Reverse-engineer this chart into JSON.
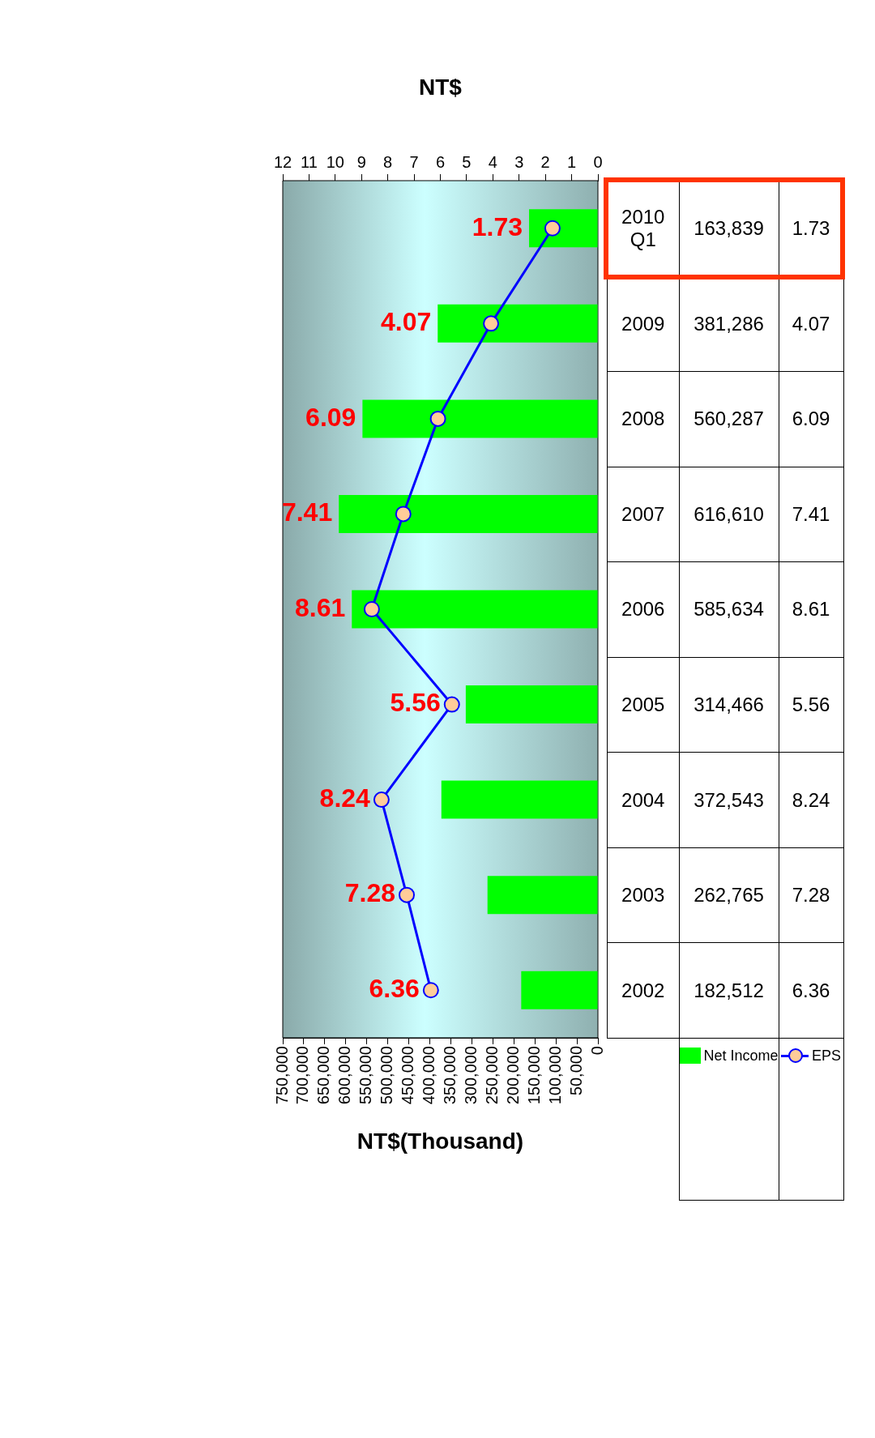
{
  "chart_data": {
    "type": "bar",
    "orientation": "horizontal",
    "xlabel": "NT$(Thousand)",
    "x2label": "NT$",
    "categories": [
      "2010 Q1",
      "2009",
      "2008",
      "2007",
      "2006",
      "2005",
      "2004",
      "2003",
      "2002"
    ],
    "series": [
      {
        "name": "Net Income",
        "color": "#00ff00",
        "values": [
          163839,
          381286,
          560287,
          616610,
          585634,
          314466,
          372543,
          262765,
          182512
        ],
        "value_labels": [
          "163,839",
          "381,286",
          "560,287",
          "616,610",
          "585,634",
          "314,466",
          "372,543",
          "262,765",
          "182,512"
        ]
      },
      {
        "name": "EPS",
        "type": "line",
        "axis": "x2",
        "color": "#0000ff",
        "values": [
          1.73,
          4.07,
          6.09,
          7.41,
          8.61,
          5.56,
          8.24,
          7.28,
          6.36
        ],
        "value_labels": [
          "1.73",
          "4.07",
          "6.09",
          "7.41",
          "8.61",
          "5.56",
          "8.24",
          "7.28",
          "6.36"
        ]
      }
    ],
    "xlim": [
      750000,
      0
    ],
    "xticks": [
      0,
      {
        "value": 50000,
        "label": "50,000"
      },
      {
        "value": 100000,
        "label": "100,000"
      },
      {
        "value": 150000,
        "label": "150,000"
      },
      {
        "value": 200000,
        "label": "200,000"
      },
      {
        "value": 250000,
        "label": "250,000"
      },
      {
        "value": 300000,
        "label": "300,000"
      },
      {
        "value": 350000,
        "label": "350,000"
      },
      {
        "value": 400000,
        "label": "400,000"
      },
      {
        "value": 450000,
        "label": "450,000"
      },
      {
        "value": 500000,
        "label": "500,000"
      },
      {
        "value": 550000,
        "label": "550,000"
      },
      {
        "value": 600000,
        "label": "600,000"
      },
      {
        "value": 650000,
        "label": "650,000"
      },
      {
        "value": 700000,
        "label": "700,000"
      },
      {
        "value": 750000,
        "label": "750,000"
      }
    ],
    "x2lim": [
      12,
      0
    ],
    "x2ticks": [
      0,
      1,
      2,
      3,
      4,
      5,
      6,
      7,
      8,
      9,
      10,
      11,
      12
    ],
    "grid": false,
    "legend": "bottom",
    "marker": "circle"
  }
}
